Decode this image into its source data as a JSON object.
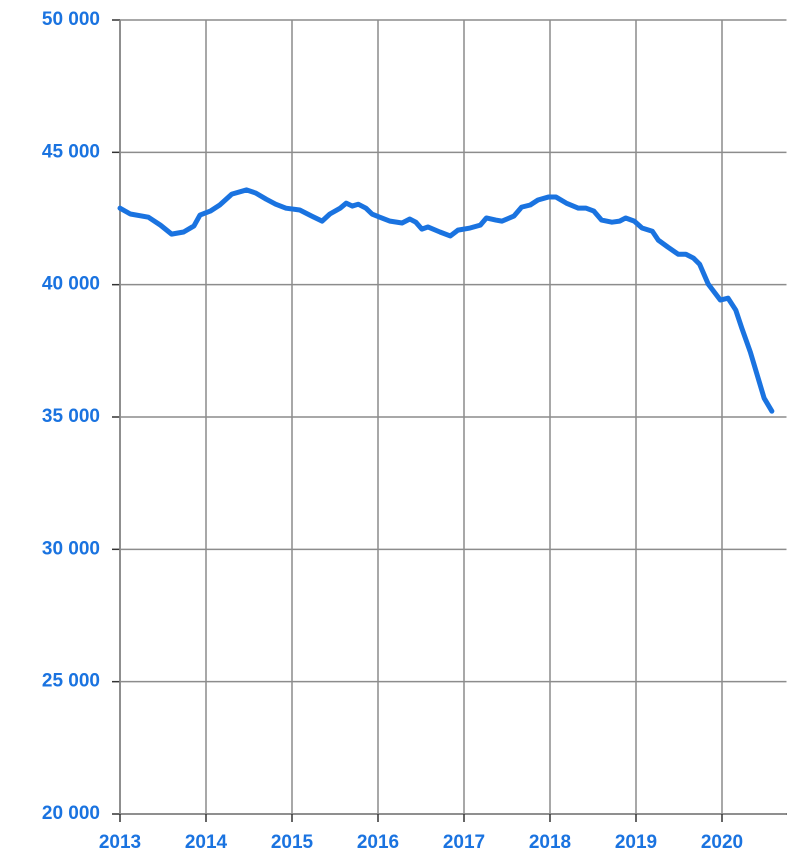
{
  "chart_data": {
    "type": "line",
    "x": [
      2013.0,
      2013.12,
      2013.33,
      2013.47,
      2013.6,
      2013.74,
      2013.86,
      2013.93,
      2014.05,
      2014.16,
      2014.3,
      2014.47,
      2014.58,
      2014.7,
      2014.81,
      2014.93,
      2015.09,
      2015.23,
      2015.35,
      2015.44,
      2015.56,
      2015.63,
      2015.7,
      2015.77,
      2015.86,
      2015.93,
      2016.02,
      2016.14,
      2016.28,
      2016.37,
      2016.44,
      2016.51,
      2016.58,
      2016.72,
      2016.84,
      2016.93,
      2017.07,
      2017.19,
      2017.26,
      2017.37,
      2017.44,
      2017.58,
      2017.67,
      2017.77,
      2017.86,
      2017.98,
      2018.07,
      2018.19,
      2018.33,
      2018.42,
      2018.51,
      2018.6,
      2018.72,
      2018.81,
      2018.88,
      2018.98,
      2019.07,
      2019.19,
      2019.26,
      2019.37,
      2019.49,
      2019.58,
      2019.67,
      2019.74,
      2019.84,
      2019.98,
      2020.07,
      2020.16,
      2020.23,
      2020.33,
      2020.42,
      2020.49,
      2020.58
    ],
    "series": [
      {
        "color": "#1a73e0",
        "values": [
          42890,
          42670,
          42550,
          42250,
          41910,
          41990,
          42220,
          42630,
          42780,
          43010,
          43420,
          43580,
          43460,
          43230,
          43040,
          42890,
          42820,
          42590,
          42400,
          42670,
          42890,
          43080,
          42970,
          43040,
          42890,
          42670,
          42550,
          42400,
          42330,
          42480,
          42360,
          42100,
          42180,
          41990,
          41840,
          42060,
          42140,
          42250,
          42520,
          42440,
          42400,
          42590,
          42930,
          43010,
          43200,
          43310,
          43310,
          43080,
          42890,
          42890,
          42780,
          42440,
          42360,
          42400,
          42520,
          42400,
          42140,
          42020,
          41680,
          41420,
          41150,
          41150,
          41000,
          40770,
          40020,
          39420,
          39490,
          39040,
          38360,
          37450,
          36470,
          35710,
          35220
        ]
      }
    ],
    "xlim": [
      2013,
      2020.75
    ],
    "xticks": [
      2013,
      2014,
      2015,
      2016,
      2017,
      2018,
      2019,
      2020
    ],
    "ylim": [
      20000,
      50000
    ],
    "yticks": [
      {
        "value": 20000,
        "label": "20 000"
      },
      {
        "value": 25000,
        "label": "25 000"
      },
      {
        "value": 30000,
        "label": "30 000"
      },
      {
        "value": 35000,
        "label": "35 000"
      },
      {
        "value": 40000,
        "label": "40 000"
      },
      {
        "value": 45000,
        "label": "45 000"
      },
      {
        "value": 50000,
        "label": "50 000"
      }
    ],
    "grid": true
  }
}
